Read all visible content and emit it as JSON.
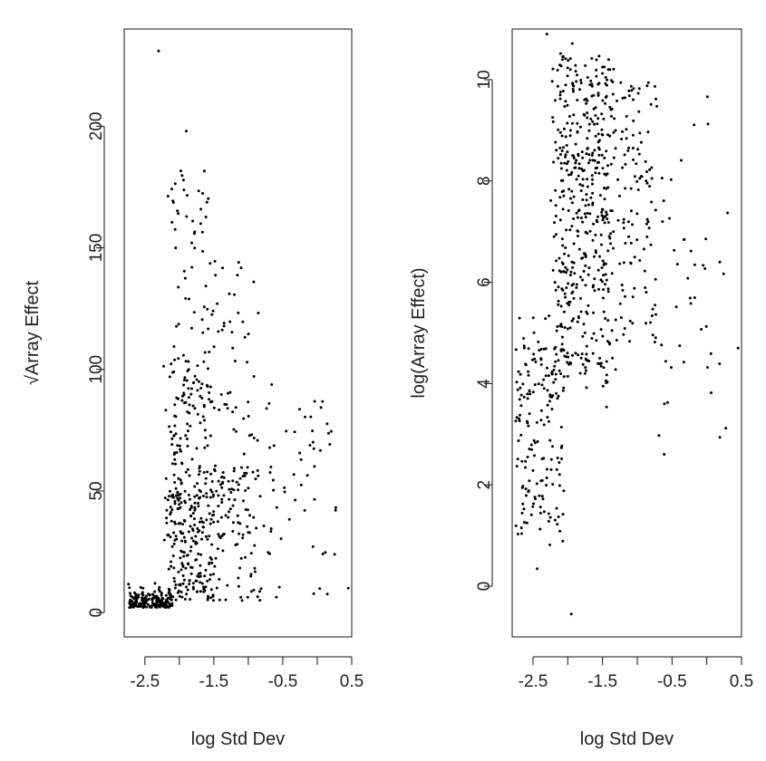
{
  "chart_data": [
    {
      "type": "scatter",
      "xlabel": "log Std Dev",
      "ylabel": "√Array Effect",
      "xlim": [
        -2.8,
        0.5
      ],
      "ylim": [
        -10,
        240
      ],
      "x_ticks": [
        "-2.5",
        "-1.5",
        "-0.5",
        "0.5"
      ],
      "x_tick_values": [
        -2.5,
        -1.5,
        -0.5,
        0.5
      ],
      "y_ticks": [
        "0",
        "50",
        "100",
        "150",
        "200"
      ],
      "y_tick_values": [
        0,
        50,
        100,
        150,
        200
      ],
      "grid": false,
      "notable_points": [
        {
          "x": -2.3,
          "y": 231
        },
        {
          "x": -1.9,
          "y": 198
        },
        {
          "x": 0.45,
          "y": 10
        }
      ],
      "point_count": 820,
      "pattern": "dense cluster near x from -2.8 to -2.2 with y under 15; main cloud for x from -2.2 to -1.4 with y up to about 185; sparser spread toward x = 0.3 with y mostly below 100"
    },
    {
      "type": "scatter",
      "xlabel": "log Std Dev",
      "ylabel": "log(Array Effect)",
      "xlim": [
        -2.8,
        0.5
      ],
      "ylim": [
        -1,
        11
      ],
      "x_ticks": [
        "-2.5",
        "-1.5",
        "-0.5",
        "0.5"
      ],
      "x_tick_values": [
        -2.5,
        -1.5,
        -0.5,
        0.5
      ],
      "y_ticks": [
        "0",
        "2",
        "4",
        "6",
        "8",
        "10"
      ],
      "y_tick_values": [
        0,
        2,
        4,
        6,
        8,
        10
      ],
      "grid": false,
      "notable_points": [
        {
          "x": -2.3,
          "y": 10.9
        },
        {
          "x": -1.95,
          "y": -0.55
        },
        {
          "x": 0.45,
          "y": 4.7
        }
      ],
      "point_count": 820,
      "pattern": "lower-left group for x from -2.8 to -2.1 with y from 1 to 5; main cloud for x from -2.2 to -1.3 with y from 4 to 10.5; sparser points up to x = 0.4"
    }
  ]
}
